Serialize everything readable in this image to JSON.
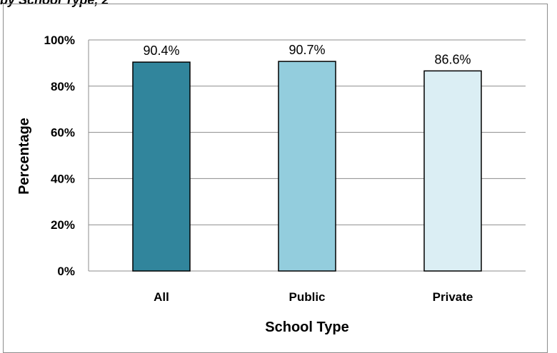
{
  "caption": "by School Type, 2",
  "chart_data": {
    "type": "bar",
    "title": "",
    "xlabel": "School Type",
    "ylabel": "Percentage",
    "categories": [
      "All",
      "Public",
      "Private"
    ],
    "values": [
      90.4,
      90.7,
      86.6
    ],
    "data_labels": [
      "90.4%",
      "90.7%",
      "86.6%"
    ],
    "ylim": [
      0,
      100
    ],
    "yticks": [
      0,
      20,
      40,
      60,
      80,
      100
    ],
    "ytick_labels": [
      "0%",
      "20%",
      "40%",
      "60%",
      "80%",
      "100%"
    ],
    "grid": true,
    "legend": "none",
    "colors": [
      "#31859c",
      "#93cddd",
      "#dbeef4"
    ]
  }
}
